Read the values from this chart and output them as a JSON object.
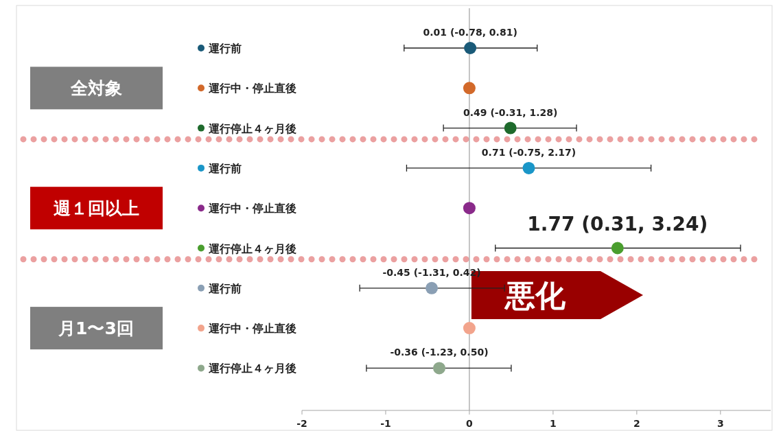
{
  "chart_data": {
    "type": "scatter",
    "orientation": "horizontal",
    "categories": [
      "運行前",
      "運行中・停止直後",
      "運行停止４ヶ月後",
      "運行前",
      "運行中・停止直後",
      "運行停止４ヶ月後",
      "運行前",
      "運行中・停止直後",
      "運行停止４ヶ月後"
    ],
    "values": [
      0.01,
      0,
      0.49,
      0.71,
      0,
      1.77,
      -0.45,
      0,
      -0.36
    ],
    "errors": [
      [
        -0.78,
        0.81
      ],
      null,
      [
        -0.31,
        1.28
      ],
      [
        -0.75,
        2.17
      ],
      null,
      [
        0.31,
        3.24
      ],
      [
        -1.31,
        0.42
      ],
      null,
      [
        -1.23,
        0.5
      ]
    ],
    "value_labels": [
      "0.01 (-0.78, 0.81)",
      null,
      "0.49 (-0.31, 1.28)",
      "0.71 (-0.75, 2.17)",
      null,
      "1.77 (0.31, 3.24)",
      "-0.45 (-1.31, 0.42)",
      null,
      "-0.36 (-1.23, 0.50)"
    ],
    "colors": [
      "#1a5a78",
      "#d2692a",
      "#1e6a2c",
      "#1a96c8",
      "#8a2a8a",
      "#4a9e2e",
      "#8a9fb4",
      "#f2a48c",
      "#8ea88c"
    ],
    "xlim": [
      -2,
      3.6
    ],
    "xticks": [
      -2,
      -1,
      0,
      1,
      2,
      3
    ],
    "ref_lines": [
      {
        "axis": "x",
        "value": 0,
        "color": "#8c8c8c",
        "line_style": "solid"
      }
    ],
    "annotations": [
      "全対象",
      "週１回以上",
      "月1〜3回",
      "悪化"
    ],
    "marker": "circle"
  }
}
